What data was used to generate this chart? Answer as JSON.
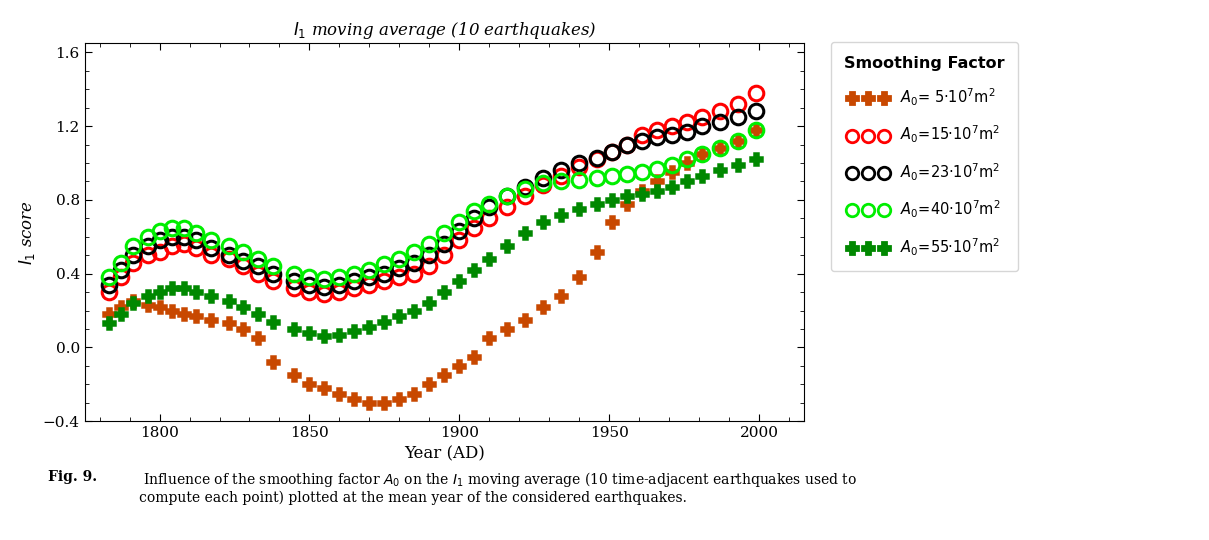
{
  "title": "$I_1$ moving average (10 earthquakes)",
  "xlabel": "Year (AD)",
  "ylabel": "$I_1$ score",
  "xlim": [
    1775,
    2015
  ],
  "ylim": [
    -0.4,
    1.65
  ],
  "xticks": [
    1800,
    1850,
    1900,
    1950,
    2000
  ],
  "yticks": [
    -0.4,
    0.0,
    0.4,
    0.8,
    1.2,
    1.6
  ],
  "caption_bold": "Fig. 9.",
  "caption_normal": "  Influence of the smoothing factor  $A_0$ on the $I_1$ moving average (10 time-adjacent earthquakes used to\ncompute each point) plotted at the mean year of the considered earthquakes.",
  "A5_color": "#C84800",
  "A15_color": "#FF0000",
  "A23_color": "#000000",
  "A40_color": "#00EE00",
  "A55_color": "#008800",
  "A5_x": [
    1783,
    1787,
    1791,
    1796,
    1800,
    1804,
    1808,
    1812,
    1817,
    1823,
    1828,
    1833,
    1838,
    1845,
    1850,
    1855,
    1860,
    1865,
    1870,
    1875,
    1880,
    1885,
    1890,
    1895,
    1900,
    1905,
    1910,
    1916,
    1922,
    1928,
    1934,
    1940,
    1946,
    1951,
    1956,
    1961,
    1966,
    1971,
    1976,
    1981,
    1987,
    1993,
    1999
  ],
  "A5_y": [
    0.18,
    0.22,
    0.25,
    0.23,
    0.22,
    0.2,
    0.18,
    0.17,
    0.15,
    0.13,
    0.1,
    0.05,
    -0.08,
    -0.15,
    -0.2,
    -0.22,
    -0.25,
    -0.28,
    -0.3,
    -0.3,
    -0.28,
    -0.25,
    -0.2,
    -0.15,
    -0.1,
    -0.05,
    0.05,
    0.1,
    0.15,
    0.22,
    0.28,
    0.38,
    0.52,
    0.68,
    0.78,
    0.85,
    0.9,
    0.95,
    1.0,
    1.05,
    1.08,
    1.12,
    1.18
  ],
  "A15_x": [
    1783,
    1787,
    1791,
    1796,
    1800,
    1804,
    1808,
    1812,
    1817,
    1823,
    1828,
    1833,
    1838,
    1845,
    1850,
    1855,
    1860,
    1865,
    1870,
    1875,
    1880,
    1885,
    1890,
    1895,
    1900,
    1905,
    1910,
    1916,
    1922,
    1928,
    1934,
    1940,
    1946,
    1951,
    1956,
    1961,
    1966,
    1971,
    1976,
    1981,
    1987,
    1993,
    1999
  ],
  "A15_y": [
    0.3,
    0.38,
    0.46,
    0.5,
    0.52,
    0.55,
    0.56,
    0.54,
    0.5,
    0.48,
    0.44,
    0.4,
    0.36,
    0.32,
    0.3,
    0.29,
    0.3,
    0.32,
    0.34,
    0.36,
    0.38,
    0.4,
    0.44,
    0.5,
    0.58,
    0.65,
    0.7,
    0.76,
    0.82,
    0.88,
    0.93,
    0.98,
    1.02,
    1.06,
    1.1,
    1.15,
    1.18,
    1.2,
    1.22,
    1.25,
    1.28,
    1.32,
    1.38
  ],
  "A23_x": [
    1783,
    1787,
    1791,
    1796,
    1800,
    1804,
    1808,
    1812,
    1817,
    1823,
    1828,
    1833,
    1838,
    1845,
    1850,
    1855,
    1860,
    1865,
    1870,
    1875,
    1880,
    1885,
    1890,
    1895,
    1900,
    1905,
    1910,
    1916,
    1922,
    1928,
    1934,
    1940,
    1946,
    1951,
    1956,
    1961,
    1966,
    1971,
    1976,
    1981,
    1987,
    1993,
    1999
  ],
  "A23_y": [
    0.34,
    0.42,
    0.5,
    0.55,
    0.58,
    0.6,
    0.6,
    0.58,
    0.54,
    0.5,
    0.47,
    0.44,
    0.4,
    0.36,
    0.34,
    0.33,
    0.34,
    0.36,
    0.38,
    0.4,
    0.43,
    0.46,
    0.5,
    0.56,
    0.63,
    0.7,
    0.76,
    0.82,
    0.87,
    0.92,
    0.96,
    1.0,
    1.03,
    1.06,
    1.1,
    1.12,
    1.14,
    1.15,
    1.17,
    1.2,
    1.22,
    1.25,
    1.28
  ],
  "A40_x": [
    1783,
    1787,
    1791,
    1796,
    1800,
    1804,
    1808,
    1812,
    1817,
    1823,
    1828,
    1833,
    1838,
    1845,
    1850,
    1855,
    1860,
    1865,
    1870,
    1875,
    1880,
    1885,
    1890,
    1895,
    1900,
    1905,
    1910,
    1916,
    1922,
    1928,
    1934,
    1940,
    1946,
    1951,
    1956,
    1961,
    1966,
    1971,
    1976,
    1981,
    1987,
    1993,
    1999
  ],
  "A40_y": [
    0.38,
    0.46,
    0.55,
    0.6,
    0.63,
    0.65,
    0.65,
    0.62,
    0.58,
    0.55,
    0.52,
    0.48,
    0.44,
    0.4,
    0.38,
    0.37,
    0.38,
    0.4,
    0.42,
    0.45,
    0.48,
    0.52,
    0.56,
    0.62,
    0.68,
    0.74,
    0.78,
    0.82,
    0.86,
    0.89,
    0.9,
    0.91,
    0.92,
    0.93,
    0.94,
    0.95,
    0.97,
    0.99,
    1.02,
    1.05,
    1.08,
    1.12,
    1.18
  ],
  "A55_x": [
    1783,
    1787,
    1791,
    1796,
    1800,
    1804,
    1808,
    1812,
    1817,
    1823,
    1828,
    1833,
    1838,
    1845,
    1850,
    1855,
    1860,
    1865,
    1870,
    1875,
    1880,
    1885,
    1890,
    1895,
    1900,
    1905,
    1910,
    1916,
    1922,
    1928,
    1934,
    1940,
    1946,
    1951,
    1956,
    1961,
    1966,
    1971,
    1976,
    1981,
    1987,
    1993,
    1999
  ],
  "A55_y": [
    0.13,
    0.18,
    0.24,
    0.28,
    0.3,
    0.32,
    0.32,
    0.3,
    0.28,
    0.25,
    0.22,
    0.18,
    0.14,
    0.1,
    0.08,
    0.06,
    0.07,
    0.09,
    0.11,
    0.14,
    0.17,
    0.2,
    0.24,
    0.3,
    0.36,
    0.42,
    0.48,
    0.55,
    0.62,
    0.68,
    0.72,
    0.75,
    0.78,
    0.8,
    0.82,
    0.83,
    0.85,
    0.87,
    0.9,
    0.93,
    0.96,
    0.99,
    1.02
  ],
  "legend_title": "Smoothing Factor",
  "legend_entries": [
    {
      "label": "$A_0$= 5·10$^7$m$^2$",
      "color": "#C84800",
      "marker": "P",
      "mfc": "#C84800"
    },
    {
      "label": "$A_0$=15·10$^7$m$^2$",
      "color": "#FF0000",
      "marker": "o",
      "mfc": "none"
    },
    {
      "label": "$A_0$=23·10$^7$m$^2$",
      "color": "#000000",
      "marker": "o",
      "mfc": "none"
    },
    {
      "label": "$A_0$=40·10$^7$m$^2$",
      "color": "#00EE00",
      "marker": "o",
      "mfc": "none"
    },
    {
      "label": "$A_0$=55·10$^7$m$^2$",
      "color": "#008800",
      "marker": "P",
      "mfc": "#008800"
    }
  ]
}
